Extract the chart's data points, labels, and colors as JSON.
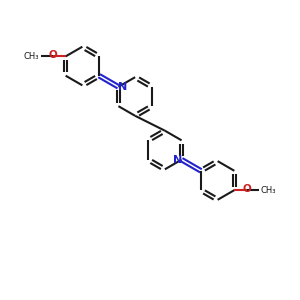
{
  "bg_color": "#ffffff",
  "bond_color": "#1a1a1a",
  "nitrogen_color": "#2222cc",
  "oxygen_color": "#cc2222",
  "lw": 1.5,
  "dbo": 0.06,
  "r": 0.65,
  "figsize": [
    3.0,
    3.0
  ],
  "dpi": 100,
  "xlim": [
    0,
    10
  ],
  "ylim": [
    0,
    10
  ]
}
